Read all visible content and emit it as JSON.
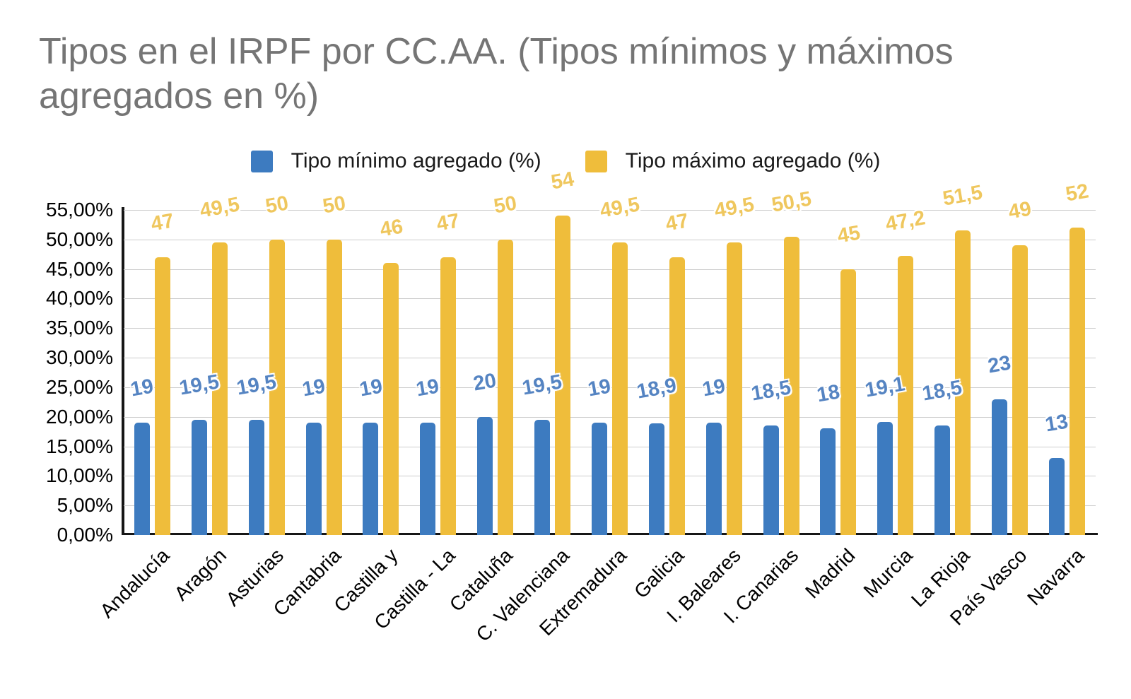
{
  "title": "Tipos en el IRPF por CC.AA. (Tipos mínimos y máximos agregados en %)",
  "chart_data": {
    "type": "bar",
    "title": "Tipos en el IRPF por CC.AA. (Tipos mínimos y máximos agregados en %)",
    "categories": [
      "Andalucía",
      "Aragón",
      "Asturias",
      "Cantabria",
      "Castilla y",
      "Castilla - La",
      "Cataluña",
      "C. Valenciana",
      "Extremadura",
      "Galicia",
      "I. Baleares",
      "I. Canarias",
      "Madrid",
      "Murcia",
      "La Rioja",
      "País Vasco",
      "Navarra"
    ],
    "series": [
      {
        "name": "Tipo mínimo agregado (%)",
        "color": "#3D7BC0",
        "label_color": "#5584C2",
        "values": [
          19,
          19.5,
          19.5,
          19,
          19,
          19,
          20,
          19.5,
          19,
          18.9,
          19,
          18.5,
          18,
          19.1,
          18.5,
          23,
          13
        ],
        "labels": [
          "19",
          "19,5",
          "19,5",
          "19",
          "19",
          "19",
          "20",
          "19,5",
          "19",
          "18,9",
          "19",
          "18,5",
          "18",
          "19,1",
          "18,5",
          "23",
          "13"
        ]
      },
      {
        "name": "Tipo máximo agregado (%)",
        "color": "#EFBD3B",
        "label_color": "#EFC75E",
        "values": [
          47,
          49.5,
          50,
          50,
          46,
          47,
          50,
          54,
          49.5,
          47,
          49.5,
          50.5,
          45,
          47.2,
          51.5,
          49,
          52
        ],
        "labels": [
          "47",
          "49,5",
          "50",
          "50",
          "46",
          "47",
          "50",
          "54",
          "49,5",
          "47",
          "49,5",
          "50,5",
          "45",
          "47,2",
          "51,5",
          "49",
          "52"
        ]
      }
    ],
    "y_axis": {
      "min": 0,
      "max": 55,
      "step": 5,
      "tick_labels": [
        "55,00%",
        "50,00%",
        "45,00%",
        "40,00%",
        "35,00%",
        "30,00%",
        "25,00%",
        "20,00%",
        "15,00%",
        "10,00%",
        "5,00%",
        "0,00%"
      ]
    },
    "grid": true,
    "legend_position": "top"
  }
}
